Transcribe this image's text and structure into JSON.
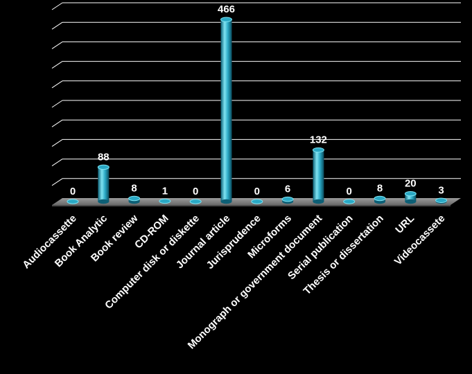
{
  "chart_data": {
    "type": "bar",
    "categories": [
      "Audiocassette",
      "Book Analytic",
      "Book review",
      "CD-ROM",
      "Computer disk or diskette",
      "Journal article",
      "Jurisprudence",
      "Microforms",
      "Monograph or government document",
      "Serial publication",
      "Thesis or dissertation",
      "URL",
      "Videocassete"
    ],
    "values": [
      0,
      88,
      8,
      1,
      0,
      466,
      0,
      6,
      132,
      0,
      8,
      20,
      3
    ],
    "ylim": [
      0,
      500
    ],
    "grid": true,
    "legend": "none",
    "style": "3d-cylinder",
    "colors": {
      "bar_light": "#7fe3f2",
      "bar_mid": "#2aa8c4",
      "bar_dark": "#0d5f75",
      "gridline": "#ffffff",
      "floor": "#8a8a8a",
      "background": "#000000"
    }
  }
}
